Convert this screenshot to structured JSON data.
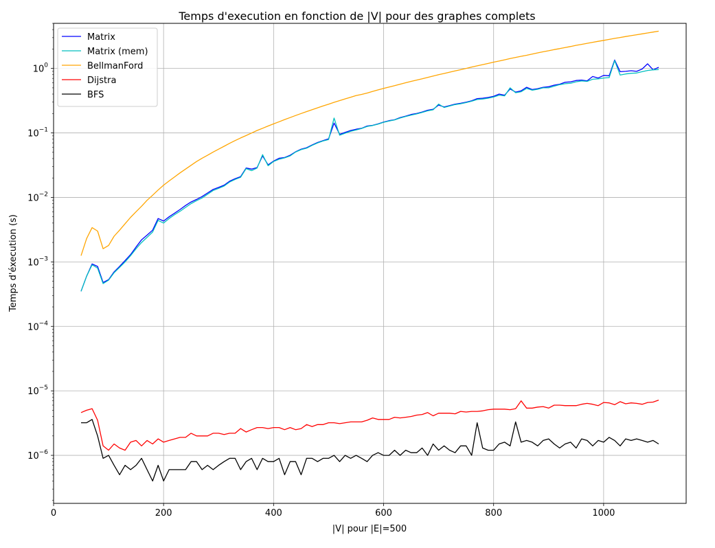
{
  "chart_data": {
    "type": "line",
    "title": "Temps d'execution en fonction de |V| pour des graphes complets",
    "xlabel": "|V| pour |E|=500",
    "ylabel": "Temps d'éxecution (s)",
    "xlim": [
      0,
      1150
    ],
    "ylim": [
      1.8e-07,
      5
    ],
    "yscale": "log",
    "grid": true,
    "legend_position": "top-left",
    "xticks": [
      0,
      200,
      400,
      600,
      800,
      1000
    ],
    "xtick_labels": [
      "0",
      "200",
      "400",
      "600",
      "800",
      "1000"
    ],
    "yticks": [
      1e-06,
      1e-05,
      0.0001,
      0.001,
      0.01,
      0.1,
      1
    ],
    "ytick_labels": [
      {
        "base": "10",
        "exp": "−6"
      },
      {
        "base": "10",
        "exp": "−5"
      },
      {
        "base": "10",
        "exp": "−4"
      },
      {
        "base": "10",
        "exp": "−3"
      },
      {
        "base": "10",
        "exp": "−2"
      },
      {
        "base": "10",
        "exp": "−1"
      },
      {
        "base": "10",
        "exp": "0"
      }
    ],
    "x": [
      50,
      60,
      70,
      80,
      90,
      100,
      110,
      120,
      130,
      140,
      150,
      160,
      170,
      180,
      190,
      200,
      210,
      220,
      230,
      240,
      250,
      260,
      270,
      280,
      290,
      300,
      310,
      320,
      330,
      340,
      350,
      360,
      370,
      380,
      390,
      400,
      410,
      420,
      430,
      440,
      450,
      460,
      470,
      480,
      490,
      500,
      510,
      520,
      530,
      540,
      550,
      560,
      570,
      580,
      590,
      600,
      610,
      620,
      630,
      640,
      650,
      660,
      670,
      680,
      690,
      700,
      710,
      720,
      730,
      740,
      750,
      760,
      770,
      780,
      790,
      800,
      810,
      820,
      830,
      840,
      850,
      860,
      870,
      880,
      890,
      900,
      910,
      920,
      930,
      940,
      950,
      960,
      970,
      980,
      990,
      1000,
      1010,
      1020,
      1030,
      1040,
      1050,
      1060,
      1070,
      1080,
      1090,
      1100
    ],
    "series": [
      {
        "name": "Matrix",
        "color": "#0000ff",
        "values": [
          0.00035,
          0.0006,
          0.00093,
          0.00085,
          0.00048,
          0.00053,
          0.0007,
          0.00085,
          0.00105,
          0.0013,
          0.0017,
          0.0022,
          0.0026,
          0.0031,
          0.0047,
          0.0043,
          0.005,
          0.0057,
          0.0065,
          0.0075,
          0.0085,
          0.0093,
          0.0103,
          0.0117,
          0.0133,
          0.0143,
          0.0155,
          0.0178,
          0.0195,
          0.021,
          0.0285,
          0.0275,
          0.029,
          0.044,
          0.032,
          0.0365,
          0.0405,
          0.0415,
          0.045,
          0.051,
          0.056,
          0.059,
          0.065,
          0.071,
          0.076,
          0.081,
          0.142,
          0.095,
          0.102,
          0.109,
          0.114,
          0.118,
          0.128,
          0.131,
          0.138,
          0.147,
          0.155,
          0.16,
          0.173,
          0.182,
          0.193,
          0.2,
          0.211,
          0.225,
          0.232,
          0.27,
          0.252,
          0.265,
          0.28,
          0.288,
          0.3,
          0.315,
          0.34,
          0.345,
          0.355,
          0.37,
          0.4,
          0.385,
          0.48,
          0.43,
          0.45,
          0.51,
          0.47,
          0.485,
          0.51,
          0.52,
          0.55,
          0.57,
          0.61,
          0.62,
          0.65,
          0.66,
          0.64,
          0.75,
          0.71,
          0.78,
          0.77,
          1.35,
          0.89,
          0.9,
          0.92,
          0.9,
          0.98,
          1.18,
          0.95,
          1.04
        ]
      },
      {
        "name": "Matrix (mem)",
        "color": "#00bfbf",
        "values": [
          0.00035,
          0.0006,
          0.0009,
          0.0008,
          0.00046,
          0.00052,
          0.00068,
          0.00082,
          0.001,
          0.00125,
          0.0016,
          0.002,
          0.0024,
          0.0029,
          0.0044,
          0.004,
          0.0047,
          0.0054,
          0.0061,
          0.007,
          0.008,
          0.0089,
          0.0098,
          0.0112,
          0.0128,
          0.0138,
          0.015,
          0.0173,
          0.019,
          0.0205,
          0.028,
          0.026,
          0.0285,
          0.046,
          0.031,
          0.036,
          0.039,
          0.041,
          0.044,
          0.0505,
          0.055,
          0.058,
          0.064,
          0.07,
          0.075,
          0.079,
          0.17,
          0.092,
          0.099,
          0.106,
          0.111,
          0.117,
          0.126,
          0.13,
          0.137,
          0.146,
          0.153,
          0.159,
          0.17,
          0.18,
          0.189,
          0.197,
          0.208,
          0.22,
          0.228,
          0.28,
          0.248,
          0.261,
          0.275,
          0.283,
          0.295,
          0.31,
          0.33,
          0.335,
          0.345,
          0.36,
          0.385,
          0.375,
          0.5,
          0.42,
          0.435,
          0.49,
          0.46,
          0.475,
          0.5,
          0.5,
          0.53,
          0.56,
          0.58,
          0.59,
          0.62,
          0.64,
          0.63,
          0.68,
          0.69,
          0.71,
          0.72,
          1.32,
          0.79,
          0.82,
          0.84,
          0.85,
          0.89,
          0.93,
          0.95,
          0.96
        ]
      },
      {
        "name": "BellmanFord",
        "color": "#ffa500",
        "values": [
          0.00125,
          0.0023,
          0.0034,
          0.003,
          0.0016,
          0.0018,
          0.0025,
          0.0031,
          0.0039,
          0.0049,
          0.006,
          0.0073,
          0.009,
          0.0108,
          0.013,
          0.0155,
          0.018,
          0.0208,
          0.024,
          0.0275,
          0.0315,
          0.036,
          0.0405,
          0.045,
          0.0505,
          0.056,
          0.062,
          0.069,
          0.076,
          0.0835,
          0.091,
          0.0995,
          0.109,
          0.118,
          0.128,
          0.138,
          0.149,
          0.161,
          0.173,
          0.186,
          0.2,
          0.214,
          0.229,
          0.245,
          0.262,
          0.279,
          0.298,
          0.317,
          0.337,
          0.357,
          0.38,
          0.395,
          0.415,
          0.44,
          0.465,
          0.49,
          0.515,
          0.54,
          0.57,
          0.6,
          0.63,
          0.66,
          0.69,
          0.725,
          0.76,
          0.8,
          0.835,
          0.875,
          0.915,
          0.955,
          1.0,
          1.05,
          1.095,
          1.145,
          1.195,
          1.25,
          1.3,
          1.36,
          1.42,
          1.48,
          1.54,
          1.6,
          1.67,
          1.74,
          1.81,
          1.88,
          1.96,
          2.03,
          2.11,
          2.19,
          2.28,
          2.36,
          2.45,
          2.54,
          2.63,
          2.72,
          2.82,
          2.92,
          3.02,
          3.12,
          3.22,
          3.33,
          3.44,
          3.55,
          3.66,
          3.78
        ]
      },
      {
        "name": "Dijstra",
        "color": "#ff0000",
        "values": [
          4.6e-06,
          5e-06,
          5.3e-06,
          3.5e-06,
          1.4e-06,
          1.2e-06,
          1.5e-06,
          1.3e-06,
          1.2e-06,
          1.6e-06,
          1.7e-06,
          1.4e-06,
          1.7e-06,
          1.5e-06,
          1.8e-06,
          1.6e-06,
          1.7e-06,
          1.8e-06,
          1.9e-06,
          1.9e-06,
          2.2e-06,
          2e-06,
          2e-06,
          2e-06,
          2.2e-06,
          2.2e-06,
          2.1e-06,
          2.2e-06,
          2.2e-06,
          2.6e-06,
          2.3e-06,
          2.5e-06,
          2.7e-06,
          2.7e-06,
          2.6e-06,
          2.7e-06,
          2.7e-06,
          2.5e-06,
          2.7e-06,
          2.5e-06,
          2.6e-06,
          3e-06,
          2.8e-06,
          3e-06,
          3e-06,
          3.2e-06,
          3.2e-06,
          3.1e-06,
          3.2e-06,
          3.3e-06,
          3.3e-06,
          3.3e-06,
          3.5e-06,
          3.8e-06,
          3.6e-06,
          3.6e-06,
          3.6e-06,
          3.9e-06,
          3.8e-06,
          3.9e-06,
          4e-06,
          4.2e-06,
          4.3e-06,
          4.6e-06,
          4.1e-06,
          4.5e-06,
          4.5e-06,
          4.5e-06,
          4.4e-06,
          4.8e-06,
          4.7e-06,
          4.8e-06,
          4.8e-06,
          4.9e-06,
          5.1e-06,
          5.2e-06,
          5.2e-06,
          5.2e-06,
          5.1e-06,
          5.3e-06,
          7e-06,
          5.4e-06,
          5.4e-06,
          5.6e-06,
          5.7e-06,
          5.4e-06,
          6e-06,
          6e-06,
          5.9e-06,
          5.9e-06,
          5.9e-06,
          6.2e-06,
          6.4e-06,
          6.2e-06,
          5.9e-06,
          6.6e-06,
          6.5e-06,
          6.1e-06,
          6.8e-06,
          6.3e-06,
          6.5e-06,
          6.4e-06,
          6.2e-06,
          6.6e-06,
          6.7e-06,
          7.2e-06
        ]
      },
      {
        "name": "BFS",
        "color": "#000000",
        "values": [
          3.2e-06,
          3.2e-06,
          3.6e-06,
          2e-06,
          9e-07,
          1e-06,
          7e-07,
          5e-07,
          7e-07,
          6e-07,
          7e-07,
          9e-07,
          6e-07,
          4e-07,
          7e-07,
          4e-07,
          6e-07,
          6e-07,
          6e-07,
          6e-07,
          8e-07,
          8e-07,
          6e-07,
          7e-07,
          6e-07,
          7e-07,
          8e-07,
          9e-07,
          9e-07,
          6e-07,
          8e-07,
          9e-07,
          6e-07,
          9e-07,
          8e-07,
          8e-07,
          9e-07,
          5e-07,
          8e-07,
          8e-07,
          5e-07,
          9e-07,
          9e-07,
          8e-07,
          9e-07,
          9e-07,
          1e-06,
          8e-07,
          1e-06,
          9e-07,
          1e-06,
          9e-07,
          8e-07,
          1e-06,
          1.1e-06,
          1e-06,
          1e-06,
          1.2e-06,
          1e-06,
          1.2e-06,
          1.1e-06,
          1.1e-06,
          1.3e-06,
          1e-06,
          1.5e-06,
          1.2e-06,
          1.4e-06,
          1.2e-06,
          1.1e-06,
          1.4e-06,
          1.4e-06,
          1e-06,
          3.2e-06,
          1.3e-06,
          1.2e-06,
          1.2e-06,
          1.5e-06,
          1.6e-06,
          1.4e-06,
          3.3e-06,
          1.6e-06,
          1.7e-06,
          1.6e-06,
          1.4e-06,
          1.7e-06,
          1.8e-06,
          1.5e-06,
          1.3e-06,
          1.5e-06,
          1.6e-06,
          1.3e-06,
          1.8e-06,
          1.7e-06,
          1.4e-06,
          1.7e-06,
          1.6e-06,
          1.9e-06,
          1.7e-06,
          1.4e-06,
          1.8e-06,
          1.7e-06,
          1.8e-06,
          1.7e-06,
          1.6e-06,
          1.7e-06,
          1.5e-06
        ]
      }
    ]
  }
}
